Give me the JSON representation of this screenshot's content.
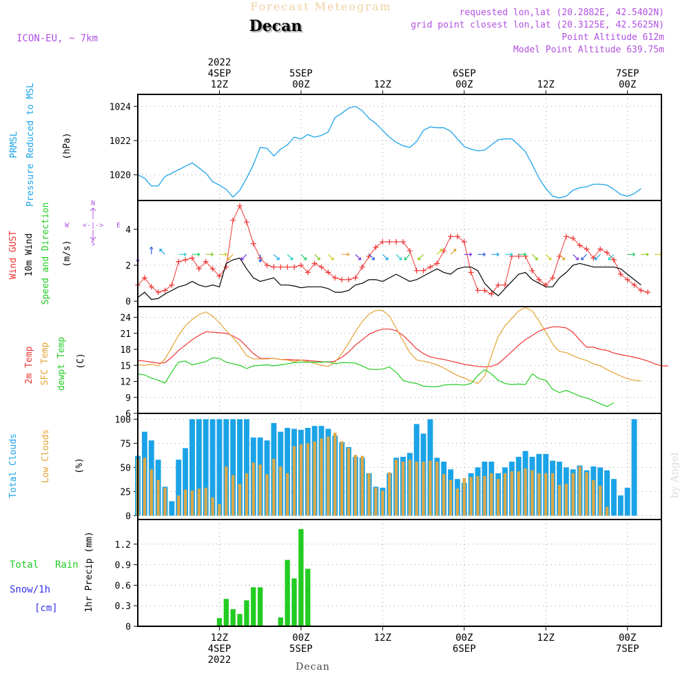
{
  "header": {
    "title": "Forecast Meteogram",
    "location": "Decan",
    "model": "ICON-EU, ~ 7km",
    "requested": "requested lon,lat (20.2882E, 42.5402N)",
    "gridpoint": "grid point closest lon,lat (20.3125E, 42.5625N)",
    "point_alt": "Point Altitude 612m",
    "model_alt": "Model Point Altitude 639.75m",
    "watermark": "by Angel",
    "footer": "Decan"
  },
  "time_axis": {
    "top_labels": [
      {
        "h": 12,
        "lines": [
          "2022",
          "4SEP",
          "12Z"
        ]
      },
      {
        "h": 24,
        "lines": [
          "5SEP",
          "00Z"
        ]
      },
      {
        "h": 36,
        "lines": [
          "12Z"
        ]
      },
      {
        "h": 48,
        "lines": [
          "6SEP",
          "00Z"
        ]
      },
      {
        "h": 60,
        "lines": [
          "12Z"
        ]
      },
      {
        "h": 72,
        "lines": [
          "7SEP",
          "00Z"
        ]
      }
    ],
    "bottom_labels": [
      {
        "h": 12,
        "lines": [
          "12Z",
          "4SEP",
          "2022"
        ]
      },
      {
        "h": 24,
        "lines": [
          "00Z",
          "5SEP"
        ]
      },
      {
        "h": 36,
        "lines": [
          "12Z"
        ]
      },
      {
        "h": 48,
        "lines": [
          "00Z",
          "6SEP"
        ]
      },
      {
        "h": 60,
        "lines": [
          "12Z"
        ]
      },
      {
        "h": 72,
        "lines": [
          "00Z",
          "7SEP"
        ]
      }
    ],
    "x_range_hours": [
      0,
      77
    ]
  },
  "panels": {
    "pressure": {
      "label1": "PRMSL",
      "label2": "Pressure Reduced to MSL",
      "unit": "(hPa)"
    },
    "wind": {
      "label1": "Wind GUST",
      "label2": "10m Wind",
      "label3": "Speed and Direction",
      "unit": "(m/s)",
      "compass_n": "N",
      "compass_s": "S",
      "compass_w": "W",
      "compass_e": "E",
      "compass_body": "<-|->"
    },
    "temp": {
      "label1": "2m Temp",
      "label2": "SFC Temp",
      "label3": "dewpt Temp",
      "unit": "(C)"
    },
    "clouds": {
      "label1": "Total Clouds",
      "label2": "Low Clouds",
      "unit": "(%)"
    },
    "precip": {
      "label1": "Total",
      "label1b": "Rain",
      "label2": "Snow/1h",
      "label3": "[cm]",
      "unit": "1hr Precip (mm)"
    }
  },
  "colors": {
    "pressure": "#1ba3e8",
    "gust": "#ee3333",
    "wind": "#000000",
    "t2m": "#ee3333",
    "tsfc": "#e3a233",
    "dewpt": "#22cc22",
    "total_clouds": "#1ba3e8",
    "low_clouds": "#d9a84a",
    "rain": "#22cc22",
    "snow": "#3333ee",
    "purple": "#b050e0",
    "grid": "#999999"
  },
  "chart_data": [
    {
      "type": "line",
      "name": "PRMSL",
      "ylim": [
        1018.5,
        1024.7
      ],
      "yticks": [
        1020,
        1022,
        1024
      ],
      "series": [
        {
          "x_start": 0,
          "x_step": 1,
          "values": [
            1020.0,
            1019.8,
            1019.35,
            1019.35,
            1019.9,
            1020.1,
            1020.3,
            1020.5,
            1020.7,
            1020.4,
            1020.1,
            1019.6,
            1019.4,
            1019.15,
            1018.7,
            1019.1,
            1019.8,
            1020.6,
            1021.6,
            1021.55,
            1021.1,
            1021.5,
            1021.75,
            1022.2,
            1022.1,
            1022.35,
            1022.2,
            1022.3,
            1022.5,
            1023.35,
            1023.6,
            1023.9,
            1024.0,
            1023.75,
            1023.3,
            1023.0,
            1022.6,
            1022.2,
            1021.9,
            1021.7,
            1021.6,
            1021.95,
            1022.6,
            1022.8,
            1022.75,
            1022.75,
            1022.55,
            1022.1,
            1021.65,
            1021.5,
            1021.4,
            1021.45,
            1021.75,
            1022.05,
            1022.1,
            1022.1,
            1021.75,
            1021.35,
            1020.6,
            1019.8,
            1019.2,
            1018.75,
            1018.65,
            1018.75,
            1019.1,
            1019.25,
            1019.3,
            1019.45,
            1019.45,
            1019.4,
            1019.15,
            1018.85,
            1018.75,
            1018.9,
            1019.2
          ]
        }
      ]
    },
    {
      "type": "line",
      "name": "wind",
      "ylim": [
        -0.3,
        5.6
      ],
      "yticks": [
        0,
        2,
        4
      ],
      "series": [
        {
          "name": "gust",
          "x_start": 0,
          "x_step": 1,
          "values": [
            0.9,
            1.3,
            0.8,
            0.5,
            0.6,
            0.9,
            2.2,
            2.3,
            2.4,
            1.8,
            2.2,
            1.8,
            1.4,
            1.9,
            4.5,
            5.3,
            4.4,
            3.2,
            2.4,
            2.0,
            1.9,
            1.9,
            1.9,
            1.9,
            2.0,
            1.6,
            2.1,
            1.9,
            1.6,
            1.3,
            1.2,
            1.2,
            1.3,
            1.9,
            2.5,
            3.0,
            3.3,
            3.3,
            3.3,
            3.3,
            2.8,
            1.7,
            1.7,
            1.9,
            2.1,
            2.8,
            3.6,
            3.6,
            3.3,
            1.6,
            0.6,
            0.6,
            0.4,
            0.9,
            0.9,
            2.5,
            2.5,
            2.5,
            1.7,
            1.2,
            0.9,
            1.3,
            2.5,
            3.6,
            3.5,
            3.1,
            2.9,
            2.4,
            2.9,
            2.7,
            2.3,
            1.5,
            1.2,
            0.9,
            0.6,
            0.5
          ]
        },
        {
          "name": "10m wind",
          "x_start": 0,
          "x_step": 1,
          "values": [
            0.2,
            0.5,
            0.1,
            0.15,
            0.4,
            0.6,
            0.8,
            0.9,
            1.1,
            0.9,
            0.8,
            0.9,
            0.8,
            2.1,
            2.3,
            2.4,
            1.8,
            1.3,
            1.1,
            1.2,
            1.3,
            0.9,
            0.9,
            0.85,
            0.75,
            0.8,
            0.8,
            0.8,
            0.7,
            0.5,
            0.5,
            0.6,
            0.9,
            1.0,
            1.2,
            1.2,
            1.1,
            1.3,
            1.5,
            1.3,
            1.1,
            1.2,
            1.4,
            1.6,
            1.8,
            1.6,
            1.5,
            1.8,
            1.9,
            1.9,
            1.7,
            1.0,
            0.6,
            0.3,
            0.7,
            1.1,
            1.5,
            1.6,
            1.2,
            1.0,
            0.8,
            0.8,
            1.3,
            1.6,
            2.0,
            2.1,
            2.0,
            1.9,
            1.9,
            1.9,
            1.9,
            1.8,
            1.5,
            1.2,
            0.9
          ]
        }
      ],
      "arrows": [
        {
          "x": 0,
          "dir": "S"
        },
        {
          "x": 2,
          "dir": "N"
        },
        {
          "x": 4,
          "dir": "NW"
        },
        {
          "x": 6,
          "dir": "E"
        },
        {
          "x": 8,
          "dir": "E"
        },
        {
          "x": 10,
          "dir": "E"
        },
        {
          "x": 12,
          "dir": "E"
        },
        {
          "x": 14,
          "dir": "SW"
        },
        {
          "x": 16,
          "dir": "SW"
        },
        {
          "x": 18,
          "dir": "S"
        },
        {
          "x": 20,
          "dir": "SE"
        },
        {
          "x": 22,
          "dir": "SE"
        },
        {
          "x": 24,
          "dir": "SE"
        },
        {
          "x": 26,
          "dir": "SE"
        },
        {
          "x": 28,
          "dir": "SE"
        },
        {
          "x": 30,
          "dir": "E"
        },
        {
          "x": 32,
          "dir": "SE"
        },
        {
          "x": 34,
          "dir": "SE"
        },
        {
          "x": 36,
          "dir": "SE"
        },
        {
          "x": 38,
          "dir": "SE"
        },
        {
          "x": 40,
          "dir": "SW"
        },
        {
          "x": 42,
          "dir": "SW"
        },
        {
          "x": 44,
          "dir": "NE"
        },
        {
          "x": 46,
          "dir": "NE"
        },
        {
          "x": 48,
          "dir": "E"
        },
        {
          "x": 50,
          "dir": "E"
        },
        {
          "x": 52,
          "dir": "E"
        },
        {
          "x": 54,
          "dir": "E"
        },
        {
          "x": 56,
          "dir": "E"
        },
        {
          "x": 58,
          "dir": "SE"
        },
        {
          "x": 60,
          "dir": "SE"
        },
        {
          "x": 62,
          "dir": "SE"
        },
        {
          "x": 64,
          "dir": "SE"
        },
        {
          "x": 66,
          "dir": "SW"
        },
        {
          "x": 68,
          "dir": "SW"
        },
        {
          "x": 70,
          "dir": "SW"
        },
        {
          "x": 72,
          "dir": "E"
        },
        {
          "x": 74,
          "dir": "E"
        },
        {
          "x": 76,
          "dir": "E"
        }
      ]
    },
    {
      "type": "line",
      "name": "temperature",
      "ylim": [
        6,
        26
      ],
      "yticks": [
        6,
        9,
        12,
        15,
        18,
        21,
        24
      ],
      "series": [
        {
          "name": "2m Temp",
          "x_start": 0,
          "x_step": 1,
          "values": [
            15.9,
            15.8,
            15.6,
            15.4,
            15.5,
            16.5,
            17.8,
            18.8,
            19.8,
            20.6,
            21.3,
            21.2,
            21.1,
            21.0,
            20.5,
            19.8,
            18.5,
            17.2,
            16.3,
            16.3,
            16.3,
            16.1,
            16.1,
            16.0,
            16.0,
            15.9,
            15.8,
            15.7,
            15.6,
            15.8,
            16.5,
            17.5,
            18.8,
            19.8,
            20.8,
            21.4,
            21.8,
            21.8,
            21.5,
            20.6,
            19.4,
            18.1,
            17.2,
            16.6,
            16.3,
            16.1,
            15.8,
            15.5,
            15.2,
            15.0,
            14.8,
            14.7,
            14.8,
            15.3,
            16.4,
            17.6,
            18.8,
            19.8,
            20.6,
            21.4,
            21.9,
            22.2,
            22.2,
            22.0,
            21.2,
            19.7,
            18.4,
            18.4,
            18.0,
            17.8,
            17.3,
            17.0,
            16.8,
            16.5,
            16.2,
            15.8,
            15.3,
            14.9,
            14.9
          ]
        },
        {
          "name": "SFC Temp",
          "x_start": 0,
          "x_step": 1,
          "values": [
            15.1,
            15.0,
            15.2,
            14.9,
            16.2,
            18.4,
            20.6,
            22.4,
            23.6,
            24.5,
            25.0,
            24.2,
            23.0,
            21.5,
            20.2,
            18.7,
            16.8,
            16.2,
            16.2,
            16.2,
            16.3,
            16.1,
            16.0,
            15.7,
            16.0,
            15.7,
            15.4,
            15.0,
            14.8,
            15.6,
            17.2,
            19.2,
            21.3,
            23.2,
            24.6,
            25.3,
            25.3,
            24.2,
            22.0,
            19.6,
            17.4,
            16.0,
            15.8,
            15.5,
            15.1,
            14.5,
            13.8,
            13.1,
            12.6,
            12.1,
            11.6,
            13.0,
            16.8,
            20.4,
            22.4,
            23.8,
            25.2,
            25.8,
            25.2,
            23.3,
            21.2,
            19.0,
            17.6,
            17.4,
            16.8,
            16.3,
            15.9,
            15.3,
            14.9,
            14.2,
            13.6,
            13.0,
            12.5,
            12.2,
            12.1
          ]
        },
        {
          "name": "dewpt Temp",
          "x_start": 0,
          "x_step": 1,
          "values": [
            13.4,
            13.2,
            12.6,
            12.2,
            11.7,
            13.8,
            15.6,
            15.8,
            15.1,
            15.4,
            15.7,
            16.4,
            16.3,
            15.6,
            15.3,
            15.0,
            14.4,
            14.9,
            15.0,
            15.1,
            14.9,
            15.1,
            15.3,
            15.5,
            15.6,
            15.6,
            15.6,
            15.6,
            15.7,
            15.3,
            15.5,
            15.5,
            15.4,
            14.9,
            14.3,
            14.2,
            14.3,
            14.7,
            13.7,
            12.2,
            11.8,
            11.6,
            11.1,
            11.0,
            11.0,
            11.3,
            11.4,
            11.4,
            11.3,
            11.6,
            13.1,
            14.2,
            13.4,
            12.2,
            11.6,
            11.4,
            11.5,
            11.4,
            13.4,
            12.5,
            12.2,
            10.5,
            9.9,
            10.3,
            9.8,
            9.2,
            8.9,
            8.4,
            7.8,
            7.3,
            8.0
          ]
        }
      ]
    },
    {
      "type": "bar",
      "name": "clouds",
      "ylim": [
        -4,
        106
      ],
      "yticks": [
        0,
        25,
        50,
        75,
        100
      ],
      "series": [
        {
          "name": "Total Clouds",
          "x_start": 0,
          "x_step": 1,
          "values": [
            62,
            87,
            78,
            58,
            30,
            15,
            58,
            70,
            100,
            100,
            100,
            100,
            100,
            100,
            100,
            100,
            100,
            81,
            81,
            78,
            96,
            87,
            91,
            90,
            89,
            91,
            93,
            93,
            90,
            83,
            76,
            71,
            61,
            60,
            44,
            30,
            29,
            44,
            60,
            61,
            65,
            95,
            85,
            100,
            60,
            56,
            48,
            38,
            34,
            44,
            50,
            56,
            56,
            44,
            50,
            56,
            61,
            67,
            61,
            64,
            64,
            57,
            56,
            50,
            48,
            52,
            47,
            51,
            50,
            47,
            38,
            21,
            29,
            100,
            0,
            0,
            0
          ]
        },
        {
          "name": "Low Clouds",
          "x_start": 0,
          "x_step": 1,
          "values": [
            59,
            60,
            48,
            37,
            29,
            0,
            21,
            27,
            26,
            28,
            29,
            19,
            12,
            51,
            42,
            33,
            44,
            55,
            53,
            43,
            59,
            51,
            44,
            72,
            74,
            75,
            77,
            80,
            82,
            86,
            77,
            70,
            63,
            62,
            44,
            29,
            26,
            45,
            58,
            56,
            58,
            56,
            56,
            57,
            56,
            43,
            37,
            28,
            39,
            40,
            41,
            41,
            44,
            38,
            44,
            46,
            46,
            49,
            47,
            44,
            44,
            44,
            32,
            33,
            44,
            51,
            45,
            37,
            31,
            9,
            0,
            0,
            0,
            0,
            0
          ]
        }
      ]
    },
    {
      "type": "bar",
      "name": "precipitation",
      "ylim": [
        0,
        1.56
      ],
      "yticks": [
        0,
        0.3,
        0.6,
        0.9,
        1.2
      ],
      "series": [
        {
          "name": "Total Rain",
          "x_start": 0,
          "x_step": 1,
          "values": [
            0,
            0,
            0,
            0,
            0,
            0,
            0,
            0,
            0,
            0,
            0,
            0,
            0.12,
            0.4,
            0.25,
            0.18,
            0.38,
            0.57,
            0.57,
            0,
            0,
            0.13,
            0.97,
            0.7,
            1.42,
            0.84,
            0,
            0,
            0.01,
            0.01,
            0,
            0,
            0,
            0,
            0,
            0,
            0,
            0,
            0,
            0,
            0,
            0,
            0,
            0,
            0,
            0,
            0,
            0,
            0,
            0,
            0,
            0,
            0,
            0,
            0,
            0,
            0,
            0,
            0,
            0,
            0,
            0,
            0,
            0,
            0,
            0,
            0,
            0,
            0,
            0,
            0,
            0,
            0,
            0,
            0,
            0
          ]
        }
      ]
    }
  ]
}
